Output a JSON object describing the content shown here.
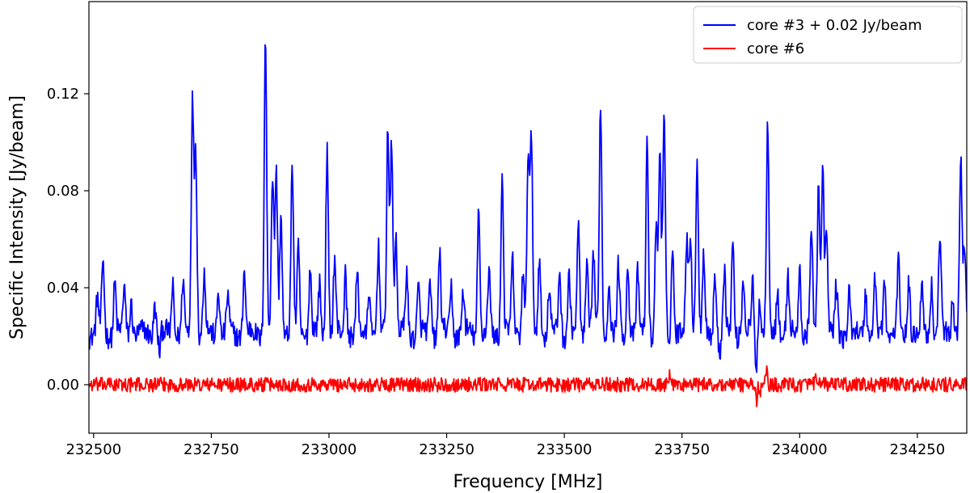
{
  "chart_data": {
    "type": "line",
    "title": "",
    "xlabel": "Frequency [MHz]",
    "ylabel": "Specific Intensity [Jy/beam]",
    "xlim": [
      232490,
      234355
    ],
    "ylim": [
      -0.02,
      0.158
    ],
    "xticks": [
      232500,
      232750,
      233000,
      233250,
      233500,
      233750,
      234000,
      234250
    ],
    "yticks": [
      0.0,
      0.04,
      0.08,
      0.12
    ],
    "ytick_labels": [
      "0.00",
      "0.04",
      "0.08",
      "0.12"
    ],
    "grid": false,
    "legend_position": "top-right",
    "series": [
      {
        "name": "core #3 + 0.02 Jy/beam",
        "color": "#0000ff",
        "baseline": 0.021,
        "peaks": [
          [
            232508,
            0.035
          ],
          [
            232520,
            0.051
          ],
          [
            232545,
            0.043
          ],
          [
            232565,
            0.04
          ],
          [
            232580,
            0.035
          ],
          [
            232630,
            0.034
          ],
          [
            232668,
            0.042
          ],
          [
            232690,
            0.043
          ],
          [
            232710,
            0.117
          ],
          [
            232717,
            0.098
          ],
          [
            232735,
            0.046
          ],
          [
            232765,
            0.041
          ],
          [
            232785,
            0.036
          ],
          [
            232820,
            0.048
          ],
          [
            232865,
            0.145
          ],
          [
            232880,
            0.084
          ],
          [
            232888,
            0.088
          ],
          [
            232898,
            0.072
          ],
          [
            232922,
            0.09
          ],
          [
            232935,
            0.056
          ],
          [
            232960,
            0.048
          ],
          [
            232980,
            0.041
          ],
          [
            232996,
            0.098
          ],
          [
            233012,
            0.051
          ],
          [
            233035,
            0.047
          ],
          [
            233060,
            0.044
          ],
          [
            233085,
            0.041
          ],
          [
            233105,
            0.055
          ],
          [
            233125,
            0.107
          ],
          [
            233133,
            0.101
          ],
          [
            233142,
            0.06
          ],
          [
            233165,
            0.047
          ],
          [
            233190,
            0.04
          ],
          [
            233215,
            0.042
          ],
          [
            233235,
            0.055
          ],
          [
            233260,
            0.041
          ],
          [
            233285,
            0.038
          ],
          [
            233318,
            0.073
          ],
          [
            233340,
            0.046
          ],
          [
            233368,
            0.088
          ],
          [
            233390,
            0.05
          ],
          [
            233412,
            0.048
          ],
          [
            233423,
            0.095
          ],
          [
            233430,
            0.099
          ],
          [
            233447,
            0.055
          ],
          [
            233468,
            0.04
          ],
          [
            233490,
            0.048
          ],
          [
            233510,
            0.045
          ],
          [
            233530,
            0.065
          ],
          [
            233548,
            0.052
          ],
          [
            233562,
            0.054
          ],
          [
            233577,
            0.117
          ],
          [
            233595,
            0.045
          ],
          [
            233615,
            0.048
          ],
          [
            233635,
            0.051
          ],
          [
            233656,
            0.045
          ],
          [
            233676,
            0.101
          ],
          [
            233695,
            0.065
          ],
          [
            233703,
            0.096
          ],
          [
            233712,
            0.109
          ],
          [
            233730,
            0.058
          ],
          [
            233760,
            0.06
          ],
          [
            233768,
            0.065
          ],
          [
            233782,
            0.095
          ],
          [
            233796,
            0.053
          ],
          [
            233820,
            0.048
          ],
          [
            233840,
            0.046
          ],
          [
            233858,
            0.06
          ],
          [
            233880,
            0.043
          ],
          [
            233900,
            0.042
          ],
          [
            233915,
            0.036
          ],
          [
            233932,
            0.108
          ],
          [
            233953,
            0.04
          ],
          [
            233975,
            0.043
          ],
          [
            234000,
            0.048
          ],
          [
            234025,
            0.063
          ],
          [
            234040,
            0.083
          ],
          [
            234049,
            0.091
          ],
          [
            234057,
            0.064
          ],
          [
            234078,
            0.04
          ],
          [
            234105,
            0.038
          ],
          [
            234140,
            0.04
          ],
          [
            234160,
            0.042
          ],
          [
            234180,
            0.044
          ],
          [
            234210,
            0.049
          ],
          [
            234232,
            0.044
          ],
          [
            234260,
            0.041
          ],
          [
            234280,
            0.043
          ],
          [
            234298,
            0.062
          ],
          [
            234325,
            0.039
          ],
          [
            234342,
            0.092
          ],
          [
            234350,
            0.058
          ]
        ],
        "dips": [
          [
            233907,
            0.005
          ],
          [
            233830,
            0.012
          ],
          [
            232640,
            0.013
          ]
        ]
      },
      {
        "name": "core #6",
        "color": "#ff0000",
        "baseline": 0.0,
        "noise_amplitude": 0.003,
        "peaks": [
          [
            233725,
            0.008
          ],
          [
            233930,
            0.011
          ],
          [
            234035,
            0.006
          ]
        ],
        "dips": [
          [
            233908,
            -0.01
          ],
          [
            233915,
            -0.007
          ]
        ]
      }
    ]
  }
}
